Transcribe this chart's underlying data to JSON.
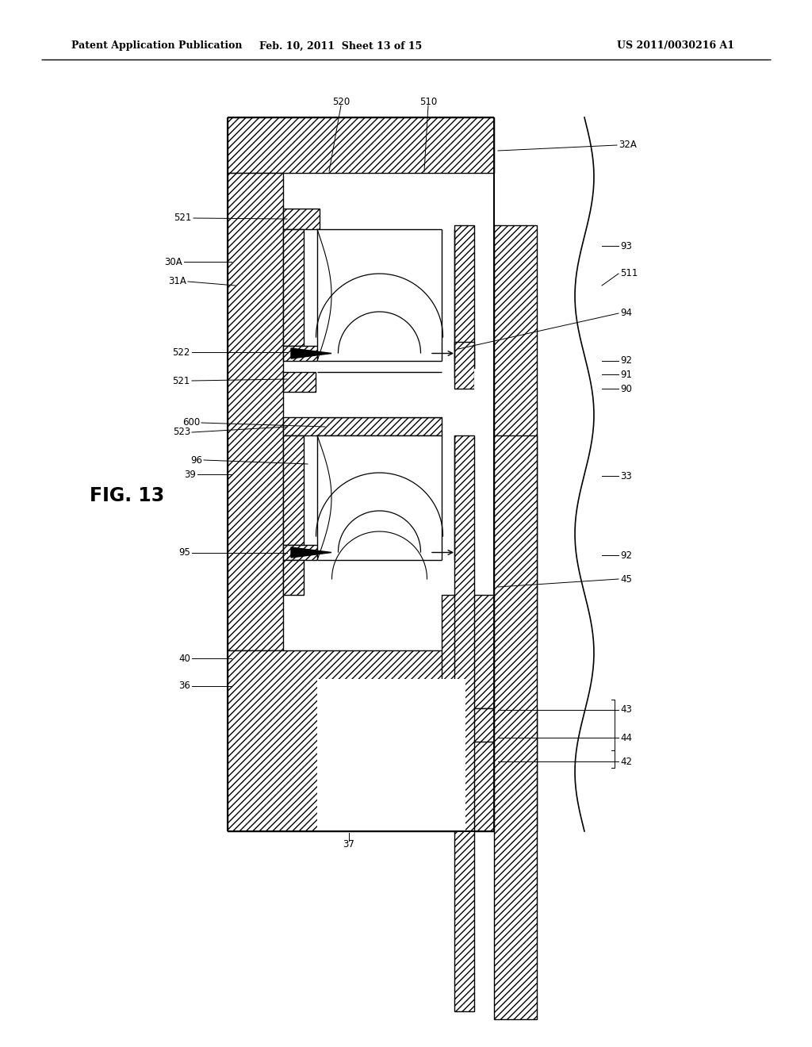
{
  "header_left": "Patent Application Publication",
  "header_center": "Feb. 10, 2011  Sheet 13 of 15",
  "header_right": "US 2011/0030216 A1",
  "fig_label": "FIG. 13",
  "bg_color": "#ffffff"
}
